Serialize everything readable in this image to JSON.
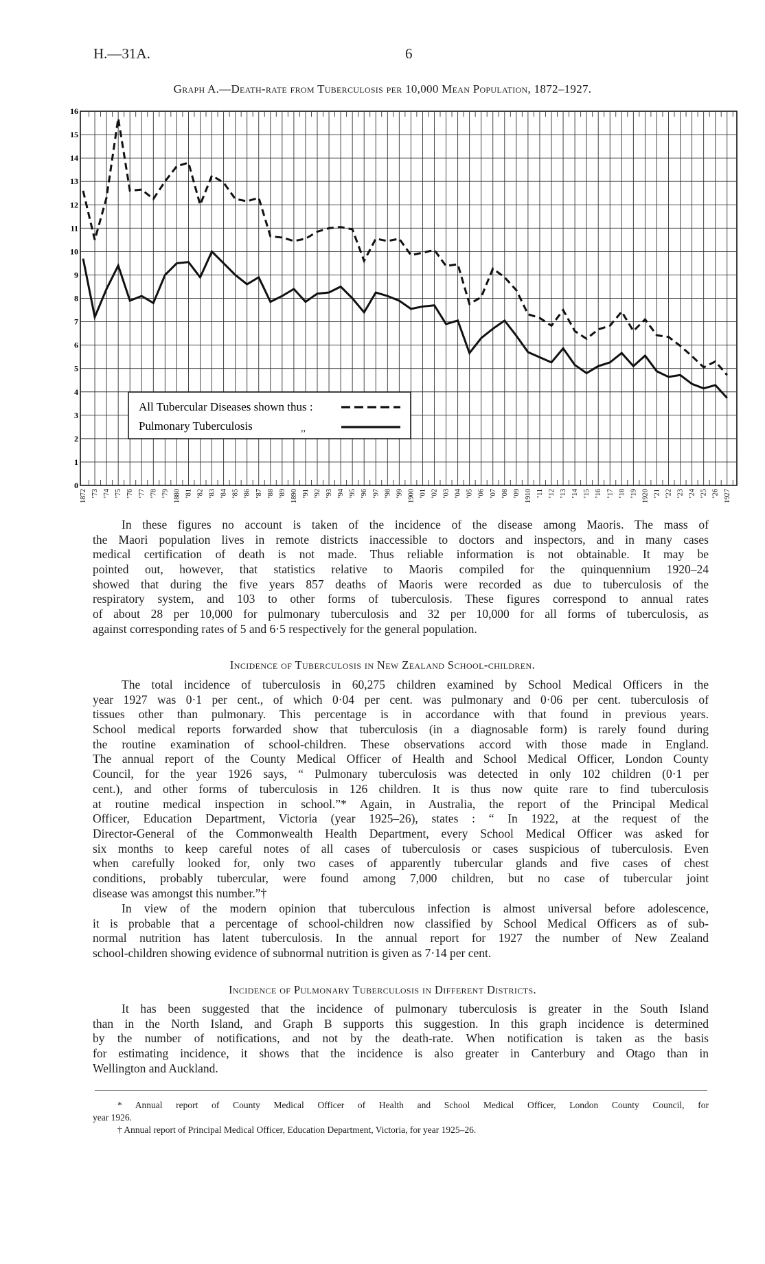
{
  "header": {
    "report_code": "H.—31A.",
    "page_number": "6"
  },
  "chart_title": "Graph A.—Death-rate from Tuberculosis per 10,000 Mean Population, 1872–1927.",
  "chart_data": {
    "type": "line",
    "title": "Graph A.—Death-rate from Tuberculosis per 10,000 Mean Population, 1872–1927.",
    "xlabel": "",
    "ylabel": "",
    "x": [
      1872,
      1873,
      1874,
      1875,
      1876,
      1877,
      1878,
      1879,
      1880,
      1881,
      1882,
      1883,
      1884,
      1885,
      1886,
      1887,
      1888,
      1889,
      1890,
      1891,
      1892,
      1893,
      1894,
      1895,
      1896,
      1897,
      1898,
      1899,
      1900,
      1901,
      1902,
      1903,
      1904,
      1905,
      1906,
      1907,
      1908,
      1909,
      1910,
      1911,
      1912,
      1913,
      1914,
      1915,
      1916,
      1917,
      1918,
      1919,
      1920,
      1921,
      1922,
      1923,
      1924,
      1925,
      1926,
      1927
    ],
    "x_tick_labels": [
      "1872",
      "’73",
      "’74",
      "’75",
      "’76",
      "’77",
      "’78",
      "’79",
      "1880",
      "’81",
      "’82",
      "’83",
      "’84",
      "’85",
      "’86",
      "’87",
      "’88",
      "’89",
      "1890",
      "’91",
      "’92",
      "’93",
      "’94",
      "’95",
      "’96",
      "’97",
      "’98",
      "’99",
      "1900",
      "’01",
      "’02",
      "’03",
      "’04",
      "’05",
      "’06",
      "’07",
      "’08",
      "’09",
      "1910",
      "’11",
      "’12",
      "’13",
      "’14",
      "’15",
      "’16",
      "’17",
      "’18",
      "’19",
      "1920",
      "’21",
      "’22",
      "’23",
      "’24",
      "’25",
      "’26",
      "1927"
    ],
    "y_tick_labels": [
      "0",
      "1",
      "2",
      "3",
      "4",
      "5",
      "6",
      "7",
      "8",
      "9",
      "10",
      "11",
      "12",
      "13",
      "14",
      "15",
      "16"
    ],
    "ylim": [
      0,
      16
    ],
    "xlim": [
      1872,
      1927
    ],
    "grid": true,
    "legend_placement": "bottom-left",
    "series": [
      {
        "name": "All Tubercular Diseases shown thus :",
        "style": "dashed",
        "values": [
          12.6,
          10.5,
          12.3,
          15.7,
          12.6,
          12.65,
          12.25,
          13.0,
          13.65,
          13.8,
          12.0,
          13.25,
          12.95,
          12.25,
          12.15,
          12.3,
          10.65,
          10.6,
          10.45,
          10.55,
          10.85,
          11.0,
          11.05,
          10.95,
          9.6,
          10.55,
          10.45,
          10.55,
          9.85,
          9.95,
          10.07,
          9.38,
          9.46,
          7.76,
          8.05,
          9.27,
          8.9,
          8.35,
          7.32,
          7.16,
          6.83,
          7.5,
          6.6,
          6.27,
          6.67,
          6.83,
          7.43,
          6.6,
          7.1,
          6.42,
          6.35,
          5.97,
          5.53,
          5.05,
          5.3,
          4.72
        ]
      },
      {
        "name": "Pulmonary Tuberculosis",
        "style": "solid",
        "values": [
          9.7,
          7.2,
          8.4,
          9.4,
          7.9,
          8.1,
          7.8,
          9.0,
          9.5,
          9.55,
          8.9,
          10.0,
          9.5,
          9.0,
          8.6,
          8.9,
          7.85,
          8.1,
          8.4,
          7.85,
          8.2,
          8.25,
          8.5,
          8.0,
          7.4,
          8.25,
          8.1,
          7.9,
          7.55,
          7.65,
          7.7,
          6.9,
          7.05,
          5.66,
          6.3,
          6.7,
          7.05,
          6.4,
          5.7,
          5.48,
          5.26,
          5.86,
          5.15,
          4.8,
          5.1,
          5.26,
          5.66,
          5.1,
          5.55,
          4.88,
          4.64,
          4.72,
          4.34,
          4.15,
          4.29,
          3.74
        ]
      }
    ],
    "legend": {
      "ditto_mark": ",,"
    }
  },
  "paragraphs": [
    {
      "lines": [
        "In these figures no account is taken of the incidence of the disease among Maoris.  The mass of",
        "the Maori population lives in remote districts inaccessible to doctors and inspectors, and in many cases",
        "medical certification of death is not made.  Thus reliable information is not obtainable.  It may be",
        "pointed out, however, that statistics relative to Maoris compiled for the quinquennium 1920–24",
        "showed that during the five years 857 deaths of Maoris were recorded as due to tuberculosis of the",
        "respiratory system, and 103 to other forms of tuberculosis.  These figures correspond to annual rates",
        "of about 28 per 10,000 for pulmonary tuberculosis and 32 per 10,000 for all forms of tuberculosis, as",
        "against corresponding rates of 5 and 6·5 respectively for the general population."
      ]
    },
    {
      "lines": [
        "The total incidence of tuberculosis in 60,275 children examined by School Medical Officers in the",
        "year 1927 was 0·1 per cent., of which 0·04 per cent. was pulmonary and 0·06 per cent. tuberculosis of",
        "tissues other than pulmonary.  This percentage is in accordance with that found in previous years.",
        "School medical reports forwarded show that tuberculosis (in a diagnosable form) is rarely found during",
        "the routine examination of school-children.  These observations accord with those made in England.",
        "The annual report of the County Medical Officer of Health and School Medical Officer, London County",
        "Council, for the year 1926 says, “ Pulmonary tuberculosis was detected in only 102 children (0·1 per",
        "cent.), and other forms of tuberculosis in 126 children.  It is thus now quite rare to find tuberculosis",
        "at routine medical inspection in school.”*  Again, in Australia, the report of the Principal Medical",
        "Officer, Education Department, Victoria (year 1925–26), states :  “ In 1922, at the request of the",
        "Director-General of the Commonwealth Health Department, every School Medical Officer was asked for",
        "six months to keep careful notes of all cases of tuberculosis or cases suspicious of tuberculosis.  Even",
        "when carefully looked for, only two cases of apparently tubercular glands and five cases of chest",
        "conditions, probably tubercular, were found among 7,000 children, but no case of tubercular joint",
        "disease was amongst this number.”†"
      ]
    },
    {
      "lines": [
        "In view of the modern opinion that tuberculous infection is almost universal before adolescence,",
        "it is probable that a percentage of school-children now classified by School Medical Officers as of sub-",
        "normal nutrition has latent tuberculosis.  In the annual report for 1927 the number of New Zealand",
        "school-children showing evidence of subnormal nutrition is given as 7·14 per cent."
      ]
    },
    {
      "lines": [
        "It has been suggested that the incidence of pulmonary tuberculosis is greater in the South Island",
        "than in the North Island, and Graph B supports this suggestion.  In this graph incidence is determined",
        "by the number of notifications, and not by the death-rate.  When notification is taken as the basis",
        "for estimating incidence, it shows that the incidence is also greater in Canterbury and Otago than in",
        "Wellington and Auckland."
      ]
    }
  ],
  "headings": [
    "Incidence of Tuberculosis in New Zealand School-children.",
    "Incidence of Pulmonary Tuberculosis in Different Districts."
  ],
  "footnotes": [
    {
      "lines": [
        "* Annual report of County Medical Officer of Health and School Medical Officer, London County Council, for",
        "year 1926."
      ]
    },
    {
      "lines": [
        "† Annual report of Principal Medical Officer, Education Department, Victoria, for year 1925–26."
      ]
    }
  ]
}
